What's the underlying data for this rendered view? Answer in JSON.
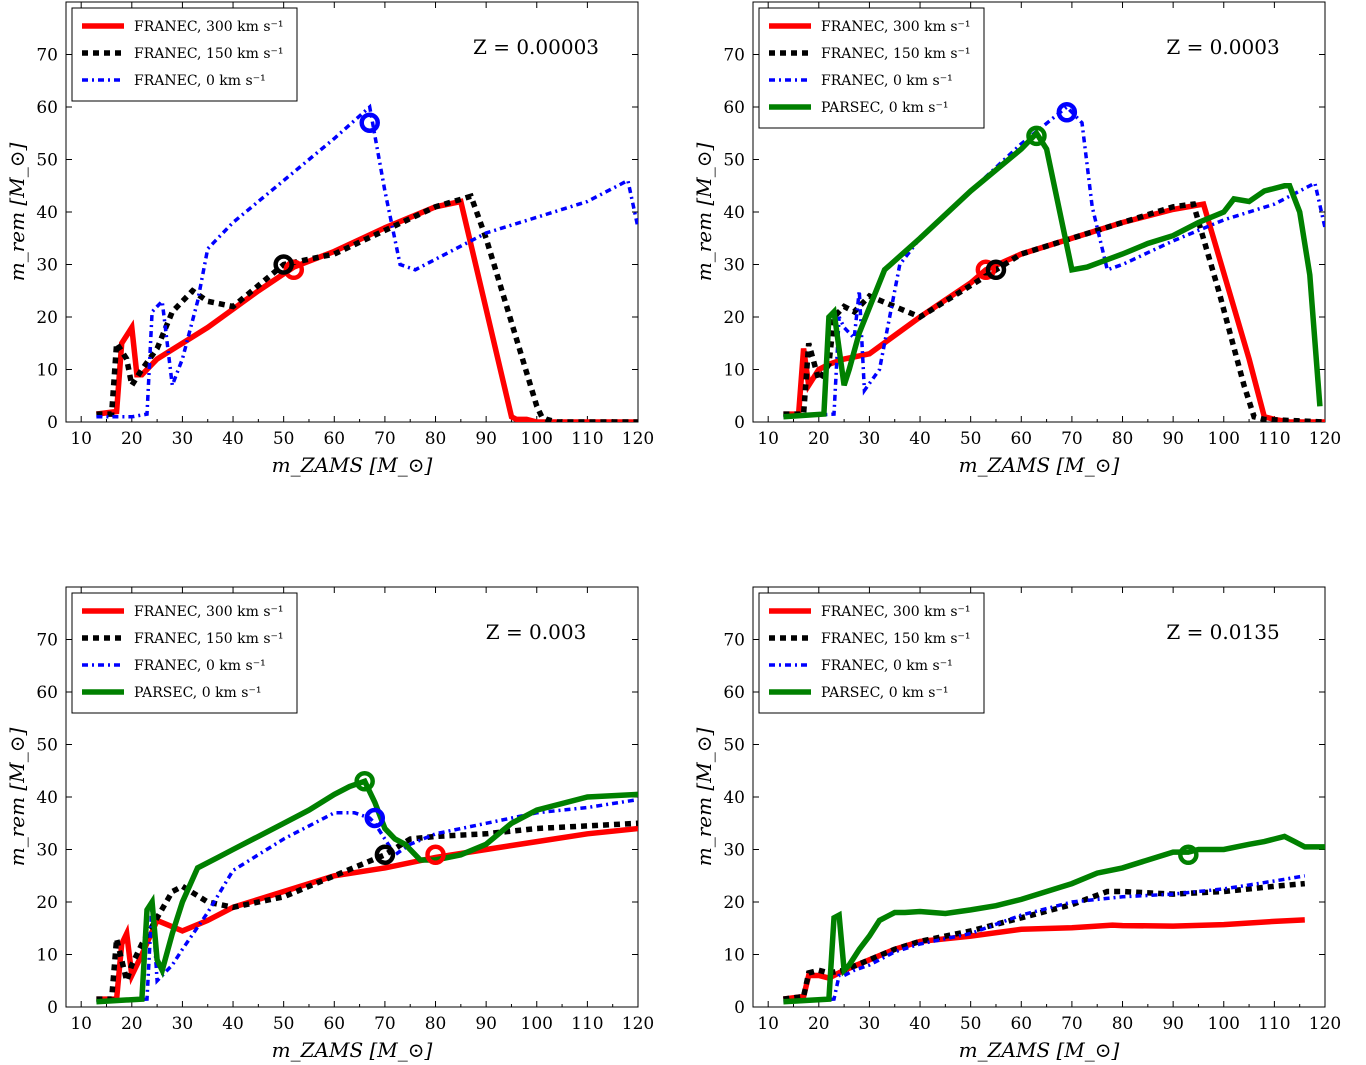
{
  "figure": {
    "panels_layout": "2x2 grid",
    "line_colors": {
      "FRANEC_300": "#ff0000",
      "FRANEC_150": "#000000",
      "FRANEC_0": "#0000ff",
      "PARSEC_0": "#008000"
    }
  },
  "chart_data": [
    {
      "type": "line",
      "annotation": "Z = 0.00003",
      "xlabel": "m_ZAMS [M_⊙]",
      "ylabel": "m_rem [M_⊙]",
      "xlim": [
        7,
        120
      ],
      "ylim": [
        0,
        80
      ],
      "xticks": [
        "10",
        "20",
        "30",
        "40",
        "50",
        "60",
        "70",
        "80",
        "90",
        "100",
        "110",
        "120"
      ],
      "yticks": [
        "0",
        "10",
        "20",
        "30",
        "40",
        "50",
        "60",
        "70"
      ],
      "grid": false,
      "legend_position": "top-left",
      "series": [
        {
          "name": "FRANEC, 300 km s⁻¹",
          "color": "#ff0000",
          "style": "solid",
          "x": [
            13,
            17,
            18,
            20,
            21,
            22,
            25,
            35,
            45,
            52,
            60,
            70,
            80,
            85,
            95,
            96,
            98,
            100,
            120
          ],
          "y": [
            1.5,
            2,
            15,
            18,
            9,
            9,
            12,
            18,
            25,
            29.5,
            32.5,
            37,
            41,
            42,
            1,
            0.5,
            0.5,
            0,
            0
          ],
          "marker": {
            "x": 52,
            "y": 29
          }
        },
        {
          "name": "FRANEC, 150 km s⁻¹",
          "color": "#000000",
          "style": "dotted",
          "x": [
            13,
            16,
            17,
            19,
            20,
            22,
            25,
            28,
            32,
            35,
            40,
            45,
            50,
            60,
            70,
            80,
            87,
            90,
            100,
            101,
            102,
            104,
            120
          ],
          "y": [
            1.5,
            1.5,
            15,
            12,
            7,
            10,
            14,
            21,
            25,
            23,
            22,
            26,
            30,
            32,
            36.5,
            41,
            43,
            35,
            3,
            1,
            0.5,
            0,
            0
          ],
          "marker": {
            "x": 50,
            "y": 30
          }
        },
        {
          "name": "FRANEC, 0 km s⁻¹",
          "color": "#0000ff",
          "style": "dashdot",
          "x": [
            13,
            20,
            23,
            24,
            25,
            26,
            28,
            30,
            33,
            35,
            40,
            50,
            60,
            67,
            70,
            73,
            76,
            80,
            90,
            100,
            110,
            118,
            120
          ],
          "y": [
            1,
            1,
            1.5,
            21,
            22,
            23,
            7,
            12,
            23,
            33,
            38,
            46,
            54,
            60,
            44,
            30,
            29,
            31,
            36,
            39,
            42,
            46,
            37
          ],
          "marker": {
            "x": 67,
            "y": 57
          }
        }
      ]
    },
    {
      "type": "line",
      "annotation": "Z = 0.0003",
      "xlabel": "m_ZAMS [M_⊙]",
      "ylabel": "m_rem [M_⊙]",
      "xlim": [
        7,
        120
      ],
      "ylim": [
        0,
        80
      ],
      "xticks": [
        "10",
        "20",
        "30",
        "40",
        "50",
        "60",
        "70",
        "80",
        "90",
        "100",
        "110",
        "120"
      ],
      "yticks": [
        "0",
        "10",
        "20",
        "30",
        "40",
        "50",
        "60",
        "70"
      ],
      "grid": false,
      "legend_position": "top-left",
      "series": [
        {
          "name": "FRANEC, 300 km s⁻¹",
          "color": "#ff0000",
          "style": "solid",
          "x": [
            13,
            16,
            17,
            18,
            20,
            22,
            25,
            30,
            40,
            50,
            53,
            60,
            70,
            80,
            90,
            96,
            105,
            108,
            110,
            113,
            120
          ],
          "y": [
            1.5,
            1.5,
            14,
            7,
            10,
            11,
            12,
            13,
            20,
            26.5,
            29,
            32,
            35,
            38,
            40.5,
            41.5,
            12,
            1,
            0.5,
            0,
            0
          ],
          "marker": {
            "x": 53,
            "y": 29
          }
        },
        {
          "name": "FRANEC, 150 km s⁻¹",
          "color": "#000000",
          "style": "dotted",
          "x": [
            13,
            17,
            18,
            20,
            22,
            23,
            25,
            27,
            30,
            40,
            55,
            60,
            70,
            80,
            90,
            94,
            99,
            104,
            106,
            108,
            120
          ],
          "y": [
            1.5,
            1.5,
            15,
            8,
            11,
            20,
            22,
            21,
            24,
            20,
            29,
            32,
            35,
            38,
            41,
            41.5,
            25,
            7,
            1,
            0.5,
            0
          ],
          "marker": {
            "x": 55,
            "y": 29
          }
        },
        {
          "name": "FRANEC, 0 km s⁻¹",
          "color": "#0000ff",
          "style": "dashdot",
          "x": [
            13,
            23,
            24,
            25,
            27,
            28,
            29,
            32,
            36,
            40,
            50,
            60,
            69,
            72,
            74,
            77,
            80,
            90,
            100,
            110,
            118,
            120
          ],
          "y": [
            1,
            1.5,
            20,
            18,
            16,
            25,
            6,
            10,
            30,
            35,
            44,
            53,
            60,
            57,
            41,
            29,
            30,
            34.5,
            38.5,
            41.5,
            45.5,
            37
          ],
          "marker": {
            "x": 69,
            "y": 59
          }
        },
        {
          "name": "PARSEC, 0 km s⁻¹",
          "color": "#008000",
          "style": "solid",
          "x": [
            13,
            21,
            22,
            23,
            25,
            26,
            28,
            33,
            40,
            50,
            60,
            63,
            65,
            70,
            73,
            80,
            85,
            90,
            95,
            100,
            102,
            105,
            108,
            112,
            113,
            115,
            117,
            119
          ],
          "y": [
            1,
            1.5,
            20,
            21,
            7,
            10,
            17,
            29,
            35,
            44,
            52,
            55,
            52,
            29,
            29.5,
            32,
            34,
            35.5,
            38,
            40,
            42.5,
            42,
            44,
            45,
            45,
            40,
            28,
            3
          ],
          "marker": {
            "x": 63,
            "y": 54.5
          }
        }
      ]
    },
    {
      "type": "line",
      "annotation": "Z = 0.003",
      "xlabel": "m_ZAMS [M_⊙]",
      "ylabel": "m_rem [M_⊙]",
      "xlim": [
        7,
        120
      ],
      "ylim": [
        0,
        80
      ],
      "xticks": [
        "10",
        "20",
        "30",
        "40",
        "50",
        "60",
        "70",
        "80",
        "90",
        "100",
        "110",
        "120"
      ],
      "yticks": [
        "0",
        "10",
        "20",
        "30",
        "40",
        "50",
        "60",
        "70"
      ],
      "grid": false,
      "legend_position": "top-left",
      "series": [
        {
          "name": "FRANEC, 300 km s⁻¹",
          "color": "#ff0000",
          "style": "solid",
          "x": [
            13,
            17,
            18,
            19,
            20,
            22,
            25,
            30,
            35,
            40,
            50,
            60,
            70,
            80,
            90,
            100,
            110,
            120
          ],
          "y": [
            1.5,
            1.5,
            12,
            14,
            6,
            10,
            16.5,
            14.5,
            16.5,
            19,
            22,
            25,
            26.5,
            28.5,
            30,
            31.5,
            33,
            34
          ],
          "marker": {
            "x": 80,
            "y": 29
          }
        },
        {
          "name": "FRANEC, 150 km s⁻¹",
          "color": "#000000",
          "style": "dotted",
          "x": [
            13,
            16,
            17,
            19,
            20,
            22,
            25,
            28,
            30,
            35,
            40,
            50,
            60,
            70,
            75,
            80,
            90,
            100,
            110,
            120
          ],
          "y": [
            1.5,
            1.5,
            13,
            5,
            8,
            12,
            17,
            22,
            23,
            20,
            19,
            21,
            25,
            29,
            32,
            32.5,
            33,
            34,
            34.5,
            35
          ],
          "marker": {
            "x": 70,
            "y": 29
          }
        },
        {
          "name": "FRANEC, 0 km s⁻¹",
          "color": "#0000ff",
          "style": "dashdot",
          "x": [
            13,
            23,
            24,
            25,
            28,
            30,
            35,
            40,
            50,
            60,
            64,
            67,
            68,
            72,
            75,
            80,
            90,
            100,
            110,
            120
          ],
          "y": [
            1,
            1.5,
            20,
            5,
            8,
            11,
            18,
            26,
            32,
            37,
            37,
            36,
            35,
            29,
            31,
            33,
            35,
            37,
            38,
            39.5
          ],
          "marker": {
            "x": 68,
            "y": 36
          }
        },
        {
          "name": "PARSEC, 0 km s⁻¹",
          "color": "#008000",
          "style": "solid",
          "x": [
            13,
            22,
            23,
            24,
            25,
            26,
            28,
            30,
            33,
            37,
            40,
            45,
            50,
            55,
            60,
            63,
            66,
            68,
            70,
            72,
            74,
            77,
            80,
            85,
            90,
            95,
            100,
            110,
            120
          ],
          "y": [
            1,
            1.5,
            18.5,
            20,
            9,
            7,
            14,
            20,
            26.5,
            28.5,
            30,
            32.5,
            35,
            37.5,
            40.5,
            42,
            43,
            39,
            34,
            32,
            31,
            28,
            28,
            29,
            31,
            35,
            37.5,
            40,
            40.5
          ],
          "marker": {
            "x": 66,
            "y": 43
          }
        }
      ]
    },
    {
      "type": "line",
      "annotation": "Z = 0.0135",
      "xlabel": "m_ZAMS [M_⊙]",
      "ylabel": "m_rem [M_⊙]",
      "xlim": [
        7,
        120
      ],
      "ylim": [
        0,
        80
      ],
      "xticks": [
        "10",
        "20",
        "30",
        "40",
        "50",
        "60",
        "70",
        "80",
        "90",
        "100",
        "110",
        "120"
      ],
      "yticks": [
        "0",
        "10",
        "20",
        "30",
        "40",
        "50",
        "60",
        "70"
      ],
      "grid": false,
      "legend_position": "top-left",
      "series": [
        {
          "name": "FRANEC, 300 km s⁻¹",
          "color": "#ff0000",
          "style": "solid",
          "x": [
            13,
            17,
            18,
            20,
            22,
            25,
            30,
            35,
            40,
            50,
            60,
            70,
            78,
            80,
            90,
            100,
            110,
            116
          ],
          "y": [
            1.5,
            2,
            6,
            6,
            5.5,
            7,
            9,
            11,
            12.5,
            13.5,
            14.8,
            15.1,
            15.6,
            15.5,
            15.4,
            15.7,
            16.3,
            16.6
          ]
        },
        {
          "name": "FRANEC, 150 km s⁻¹",
          "color": "#000000",
          "style": "dotted",
          "x": [
            13,
            17,
            18,
            20,
            22,
            25,
            30,
            35,
            40,
            50,
            60,
            70,
            77,
            80,
            90,
            100,
            110,
            116
          ],
          "y": [
            1.5,
            2,
            6.5,
            7,
            6.5,
            7,
            9,
            11,
            12.5,
            14.5,
            17,
            19.5,
            22,
            22,
            21.5,
            22,
            23,
            23.5
          ]
        },
        {
          "name": "FRANEC, 0 km s⁻¹",
          "color": "#0000ff",
          "style": "dashdot",
          "x": [
            13,
            23,
            24,
            25,
            27,
            30,
            35,
            40,
            50,
            60,
            70,
            80,
            90,
            100,
            110,
            116
          ],
          "y": [
            1,
            1.5,
            6,
            6,
            7,
            8,
            10.5,
            12,
            14,
            17.5,
            20,
            21,
            21.5,
            22.5,
            24,
            25
          ]
        },
        {
          "name": "PARSEC, 0 km s⁻¹",
          "color": "#008000",
          "style": "solid",
          "x": [
            13,
            22,
            23,
            24,
            25,
            26,
            28,
            30,
            32,
            35,
            37,
            40,
            45,
            50,
            55,
            60,
            65,
            70,
            75,
            80,
            85,
            90,
            93,
            95,
            100,
            105,
            108,
            110,
            112,
            114,
            116,
            120
          ],
          "y": [
            1,
            1.5,
            17,
            17.5,
            7,
            8,
            11,
            13.5,
            16.5,
            18,
            18,
            18.2,
            17.8,
            18.5,
            19.3,
            20.5,
            22,
            23.5,
            25.5,
            26.5,
            28,
            29.5,
            29.5,
            30,
            30,
            31,
            31.5,
            32,
            32.5,
            31.5,
            30.5,
            30.5
          ],
          "marker": {
            "x": 93,
            "y": 29
          }
        }
      ]
    }
  ]
}
